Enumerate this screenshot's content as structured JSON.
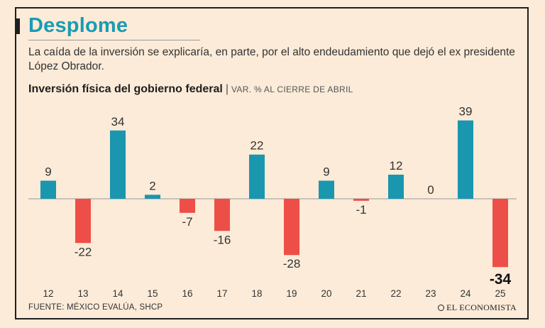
{
  "header": {
    "title": "Desplome",
    "subtitle": "La caída de la inversión se explicaría, en parte, por el alto endeudamiento que dejó el ex presidente López Obrador."
  },
  "chart_data": {
    "type": "bar",
    "title": "Inversión física del gobierno federal",
    "unit": "VAR. % AL CIERRE DE ABRIL",
    "categories": [
      "12",
      "13",
      "14",
      "15",
      "16",
      "17",
      "18",
      "19",
      "20",
      "21",
      "22",
      "23",
      "24",
      "25"
    ],
    "values": [
      9,
      -22,
      34,
      2,
      -7,
      -16,
      22,
      -28,
      9,
      -1,
      12,
      0,
      39,
      -34
    ],
    "labels": [
      "9",
      "-22",
      "34",
      "2",
      "-7",
      "-16",
      "22",
      "-28",
      "9",
      "-1",
      "12",
      "0",
      "39",
      "-34"
    ],
    "highlight_last": true,
    "colors": {
      "positive": "#1a96ae",
      "negative": "#ee4e48"
    }
  },
  "footer": {
    "source": "FUENTE: MÉXICO EVALÚA, SHCP",
    "brand": "EL ECONOMISTA"
  }
}
